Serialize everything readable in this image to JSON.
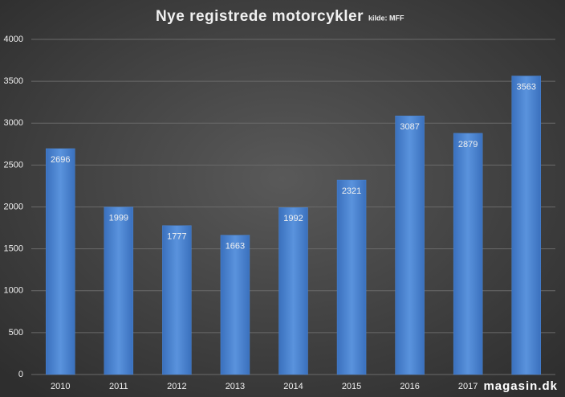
{
  "chart_data": {
    "type": "bar",
    "title": "Nye registrede motorcykler",
    "subtitle": "kilde: MFF",
    "categories": [
      "2010",
      "2011",
      "2012",
      "2013",
      "2014",
      "2015",
      "2016",
      "2017",
      null
    ],
    "values": [
      2696,
      1999,
      1777,
      1663,
      1992,
      2321,
      3087,
      2879,
      3563
    ],
    "color": "#4a86d6",
    "ylim": [
      0,
      4000
    ],
    "yticks": [
      0,
      500,
      1000,
      1500,
      2000,
      2500,
      3000,
      3500,
      4000
    ],
    "grid": true,
    "watermark": "magasin.dk"
  }
}
